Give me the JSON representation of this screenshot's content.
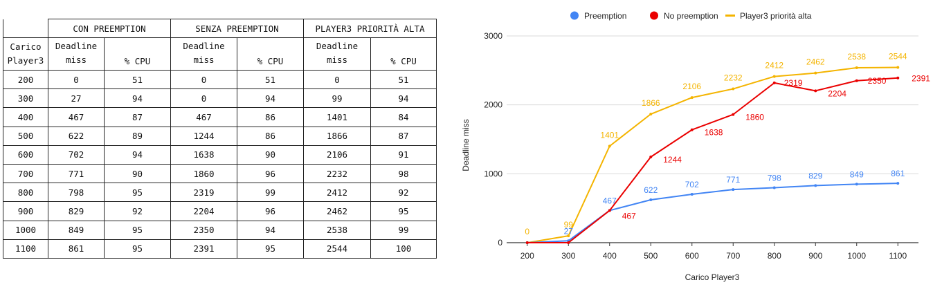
{
  "table": {
    "groups": [
      "CON PREEMPTION",
      "SENZA PREEMPTION",
      "PLAYER3 PRIORITÀ ALTA"
    ],
    "load_header": [
      "Carico",
      "Player3"
    ],
    "deadline_header": [
      "Deadline",
      "miss"
    ],
    "cpu_header": "% CPU",
    "rows": [
      [
        "200",
        "0",
        "51",
        "0",
        "51",
        "0",
        "51"
      ],
      [
        "300",
        "27",
        "94",
        "0",
        "94",
        "99",
        "94"
      ],
      [
        "400",
        "467",
        "87",
        "467",
        "86",
        "1401",
        "84"
      ],
      [
        "500",
        "622",
        "89",
        "1244",
        "86",
        "1866",
        "87"
      ],
      [
        "600",
        "702",
        "94",
        "1638",
        "90",
        "2106",
        "91"
      ],
      [
        "700",
        "771",
        "90",
        "1860",
        "96",
        "2232",
        "98"
      ],
      [
        "800",
        "798",
        "95",
        "2319",
        "99",
        "2412",
        "92"
      ],
      [
        "900",
        "829",
        "92",
        "2204",
        "96",
        "2462",
        "95"
      ],
      [
        "1000",
        "849",
        "95",
        "2350",
        "94",
        "2538",
        "99"
      ],
      [
        "1100",
        "861",
        "95",
        "2391",
        "95",
        "2544",
        "100"
      ]
    ]
  },
  "chart_data": {
    "type": "line",
    "title": "",
    "xlabel": "Carico Player3",
    "ylabel": "Deadline miss",
    "x": [
      200,
      300,
      400,
      500,
      600,
      700,
      800,
      900,
      1000,
      1100
    ],
    "ylim": [
      0,
      3000
    ],
    "yticks": [
      0,
      1000,
      2000,
      3000
    ],
    "grid": true,
    "legend_position": "top",
    "series": [
      {
        "name": "Preemption",
        "color": "#4285f4",
        "values": [
          0,
          27,
          467,
          622,
          702,
          771,
          798,
          829,
          849,
          861
        ]
      },
      {
        "name": "No preemption",
        "color": "#ea0000",
        "values": [
          0,
          0,
          467,
          1244,
          1638,
          1860,
          2319,
          2204,
          2350,
          2391
        ]
      },
      {
        "name": "Player3 priorità alta",
        "color": "#f4b400",
        "values": [
          0,
          99,
          1401,
          1866,
          2106,
          2232,
          2412,
          2462,
          2538,
          2544
        ]
      }
    ]
  }
}
